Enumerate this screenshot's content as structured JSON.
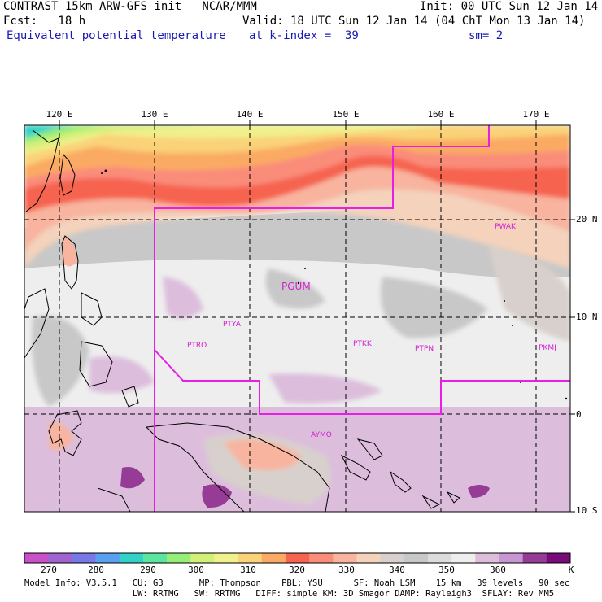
{
  "header": {
    "model": "CONTRAST 15km ARW-GFS init   NCAR/MMM",
    "init": "Init: 00 UTC Sun 12 Jan 14",
    "forecast": "Fcst:   18 h",
    "valid": "Valid: 18 UTC Sun 12 Jan 14 (04 ChT Mon 13 Jan 14)",
    "field": "Equivalent potential temperature",
    "level": "at k-index =  39",
    "smoothing": "sm= 2"
  },
  "axes": {
    "longitudes": [
      "120 E",
      "130 E",
      "140 E",
      "150 E",
      "160 E",
      "170 E"
    ],
    "latitudes": [
      "20 N",
      "10 N",
      "0",
      "10 S"
    ]
  },
  "stations": [
    "PGUM",
    "PTYA",
    "PTRO",
    "PTKK",
    "PTPN",
    "PKMJ",
    "PWAK",
    "AYMO"
  ],
  "colorbar": {
    "labels": [
      "270",
      "280",
      "290",
      "300",
      "310",
      "320",
      "330",
      "340",
      "350",
      "360",
      "K"
    ],
    "colors": [
      "#c850c8",
      "#a064d2",
      "#7878e6",
      "#5aa0f0",
      "#32d2c8",
      "#5ae6a0",
      "#96ee78",
      "#d2f078",
      "#f0f08c",
      "#fad278",
      "#faaa64",
      "#f66450",
      "#fa8c7a",
      "#f8b49e",
      "#f4d2bc",
      "#d8d0cc",
      "#c8c8c8",
      "#dcdcdc",
      "#eeeeee",
      "#dcbedc",
      "#c896d2",
      "#963c96",
      "#7a0a7a"
    ],
    "unit": "K"
  },
  "model_info": {
    "line1": "Model Info: V3.5.1   CU: G3       MP: Thompson    PBL: YSU      SF: Noah LSM    15 km   39 levels   90 sec",
    "line2": "                     LW: RRTMG   SW: RRTMG   DIFF: simple KM: 3D Smagor DAMP: Rayleigh3  SFLAY: Rev MM5"
  },
  "colors": {
    "boundary": "#e61ee6",
    "station": "#d21ed2"
  }
}
